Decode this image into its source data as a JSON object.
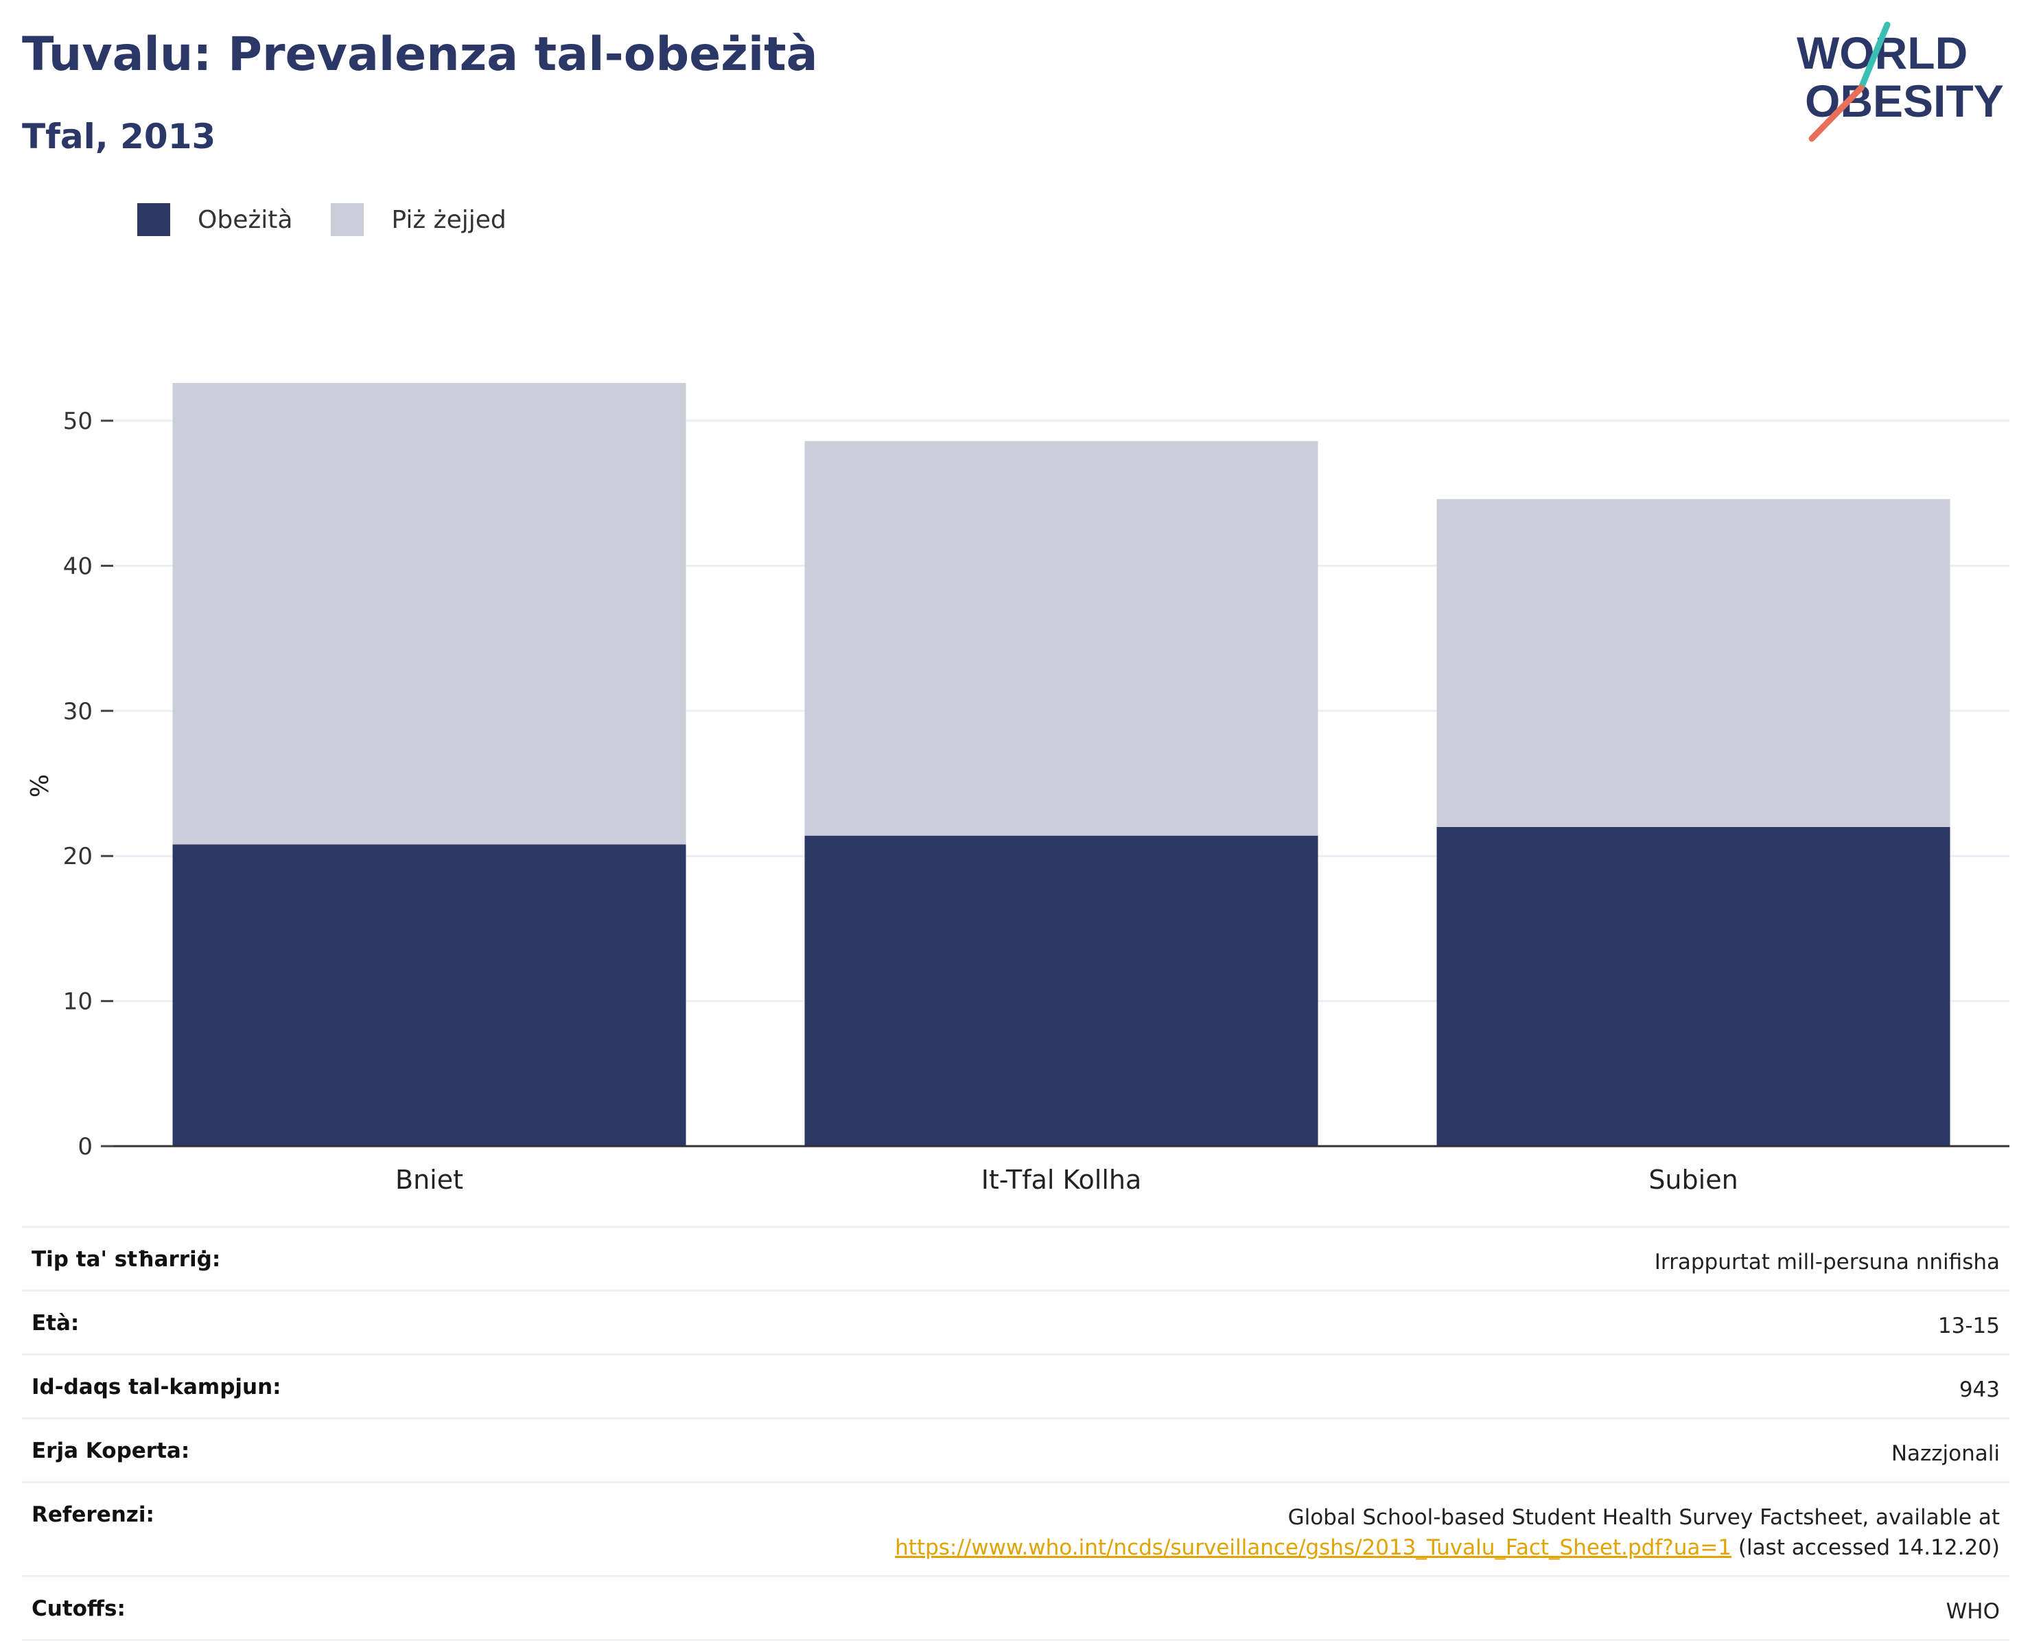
{
  "header": {
    "title": "Tuvalu: Prevalenza tal-obeżità",
    "subtitle": "Tfal, 2013",
    "logo_line1": "WORLD",
    "logo_line2": "OBESITY"
  },
  "legend": [
    {
      "label": "Obeżità",
      "color": "#2b3764"
    },
    {
      "label": "Piż żejjed",
      "color": "#cbcdd8"
    }
  ],
  "chart_data": {
    "type": "bar",
    "stacked": true,
    "categories": [
      "Bniet",
      "It-Tfal Kollha",
      "Subien"
    ],
    "series": [
      {
        "name": "Obeżità",
        "values": [
          20.8,
          21.4,
          22.0
        ],
        "color": "#2b3764"
      },
      {
        "name": "Piż żejjed",
        "values": [
          31.8,
          27.2,
          22.6
        ],
        "color": "#cbcdd8"
      }
    ],
    "ylabel": "%",
    "ylim": [
      0,
      55
    ],
    "yticks": [
      0,
      10,
      20,
      30,
      40,
      50
    ],
    "grid": true,
    "legend_position": "top-left"
  },
  "meta": {
    "survey_type_label": "Tip ta' stħarriġ:",
    "survey_type_value": "Irrappurtat mill-persuna nnifisha",
    "age_label": "Età:",
    "age_value": "13-15",
    "sample_label": "Id-daqs tal-kampjun:",
    "sample_value": "943",
    "area_label": "Erja Koperta:",
    "area_value": "Nazzjonali",
    "ref_label": "Referenzi:",
    "ref_text": "Global School-based Student Health Survey Factsheet, available at",
    "ref_link": "https://www.who.int/ncds/surveillance/gshs/2013_Tuvalu_Fact_Sheet.pdf?ua=1",
    "ref_suffix": " (last accessed 14.12.20)",
    "cutoffs_label": "Cutoffs:",
    "cutoffs_value": "WHO"
  }
}
